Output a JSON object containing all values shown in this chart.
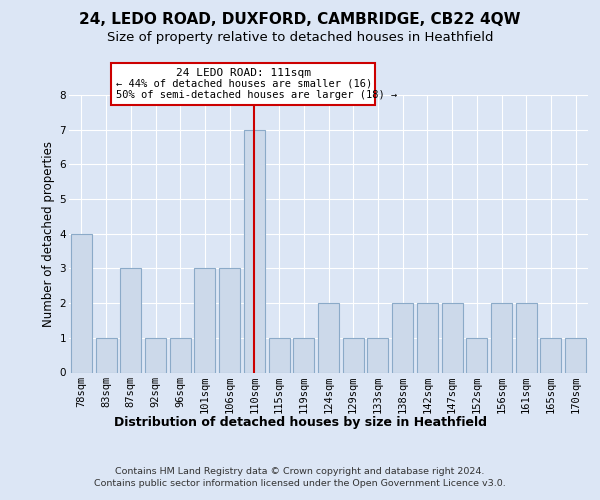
{
  "title": "24, LEDO ROAD, DUXFORD, CAMBRIDGE, CB22 4QW",
  "subtitle": "Size of property relative to detached houses in Heathfield",
  "xlabel": "Distribution of detached houses by size in Heathfield",
  "ylabel": "Number of detached properties",
  "categories": [
    "78sqm",
    "83sqm",
    "87sqm",
    "92sqm",
    "96sqm",
    "101sqm",
    "106sqm",
    "110sqm",
    "115sqm",
    "119sqm",
    "124sqm",
    "129sqm",
    "133sqm",
    "138sqm",
    "142sqm",
    "147sqm",
    "152sqm",
    "156sqm",
    "161sqm",
    "165sqm",
    "170sqm"
  ],
  "values": [
    4,
    1,
    3,
    1,
    1,
    3,
    3,
    7,
    1,
    1,
    2,
    1,
    1,
    2,
    2,
    2,
    1,
    2,
    2,
    1,
    1
  ],
  "subject_index": 7,
  "bar_color": "#ccd9ea",
  "bar_edge_color": "#8baac8",
  "subject_line_color": "#cc0000",
  "background_color": "#dce6f5",
  "plot_bg_color": "#dce6f5",
  "grid_color": "#ffffff",
  "ylim": [
    0,
    8
  ],
  "yticks": [
    0,
    1,
    2,
    3,
    4,
    5,
    6,
    7,
    8
  ],
  "annotation_line1": "24 LEDO ROAD: 111sqm",
  "annotation_line2": "← 44% of detached houses are smaller (16)",
  "annotation_line3": "50% of semi-detached houses are larger (18) →",
  "footer_line1": "Contains HM Land Registry data © Crown copyright and database right 2024.",
  "footer_line2": "Contains public sector information licensed under the Open Government Licence v3.0.",
  "title_fontsize": 11,
  "subtitle_fontsize": 9.5,
  "xlabel_fontsize": 9,
  "ylabel_fontsize": 8.5,
  "tick_fontsize": 7.5
}
